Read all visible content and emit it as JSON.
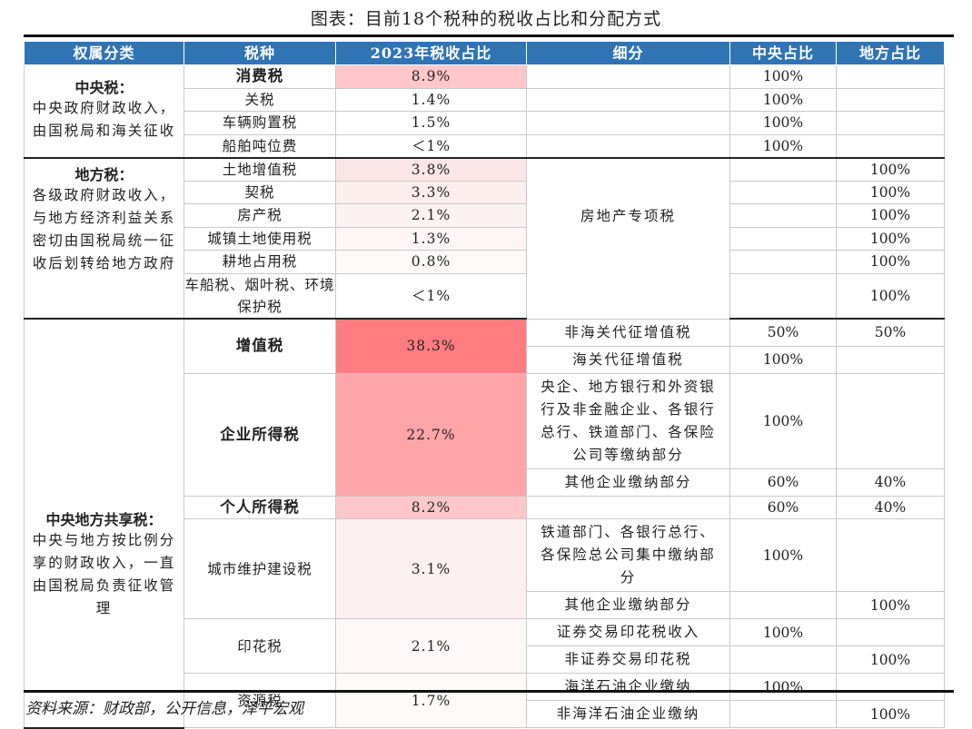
{
  "title": "图表：目前18个税种的税收占比和分配方式",
  "headers": [
    "权属分类",
    "税种",
    "2023年税收占比",
    "细分",
    "中央占比",
    "地方占比"
  ],
  "colors": {
    "header_bg": "#2f74b5",
    "highlight_strong": "#ff7c80",
    "highlight_medium": "#ffa5a8",
    "highlight_light": "#ffc7c9",
    "highlight_faint": "#fbe5e6"
  },
  "groups": {
    "central": {
      "title": "中央税：",
      "desc": "中央政府财政收入，由国税局和海关征收",
      "rows": [
        {
          "tax": "消费税",
          "share": "8.9%",
          "detail": "",
          "central": "100%",
          "local": ""
        },
        {
          "tax": "关税",
          "share": "1.4%",
          "detail": "",
          "central": "100%",
          "local": ""
        },
        {
          "tax": "车辆购置税",
          "share": "1.5%",
          "detail": "",
          "central": "100%",
          "local": ""
        },
        {
          "tax": "船舶吨位费",
          "share": "＜1%",
          "detail": "",
          "central": "100%",
          "local": ""
        }
      ]
    },
    "local": {
      "title": "地方税：",
      "desc": "各级政府财政收入，与地方经济利益关系密切由国税局统一征收后划转给地方政府",
      "detail_merged": "房地产专项税",
      "rows": [
        {
          "tax": "土地增值税",
          "share": "3.8%",
          "central": "",
          "local": "100%"
        },
        {
          "tax": "契税",
          "share": "3.3%",
          "central": "",
          "local": "100%"
        },
        {
          "tax": "房产税",
          "share": "2.1%",
          "central": "",
          "local": "100%"
        },
        {
          "tax": "城镇土地使用税",
          "share": "1.3%",
          "central": "",
          "local": "100%"
        },
        {
          "tax": "耕地占用税",
          "share": "0.8%",
          "central": "",
          "local": "100%"
        },
        {
          "tax": "车船税、烟叶税、环境保护税",
          "share": "＜1%",
          "central": "",
          "local": "100%"
        }
      ]
    },
    "shared": {
      "title": "中央地方共享税：",
      "desc": "中央与地方按比例分享的财政收入，一直由国税局负责征收管理",
      "vat": {
        "tax": "增值税",
        "share": "38.3%",
        "subs": [
          {
            "detail": "非海关代征增值税",
            "central": "50%",
            "local": "50%"
          },
          {
            "detail": "海关代征增值税",
            "central": "100%",
            "local": ""
          }
        ]
      },
      "cit": {
        "tax": "企业所得税",
        "share": "22.7%",
        "subs": [
          {
            "detail": "央企、地方银行和外资银行及非金融企业、各银行总行、铁道部门、各保险公司等缴纳部分",
            "central": "100%",
            "local": ""
          },
          {
            "detail": "其他企业缴纳部分",
            "central": "60%",
            "local": "40%"
          }
        ]
      },
      "pit": {
        "tax": "个人所得税",
        "share": "8.2%",
        "detail": "",
        "central": "60%",
        "local": "40%"
      },
      "urban": {
        "tax": "城市维护建设税",
        "share": "3.1%",
        "subs": [
          {
            "detail": "铁道部门、各银行总行、各保险总公司集中缴纳部分",
            "central": "100%",
            "local": ""
          },
          {
            "detail": "其他企业缴纳部分",
            "central": "",
            "local": "100%"
          }
        ]
      },
      "stamp": {
        "tax": "印花税",
        "share": "2.1%",
        "subs": [
          {
            "detail": "证券交易印花税收入",
            "central": "100%",
            "local": ""
          },
          {
            "detail": "非证券交易印花税",
            "central": "",
            "local": "100%"
          }
        ]
      },
      "resource": {
        "tax": "资源税",
        "share": "1.7%",
        "subs": [
          {
            "detail": "海洋石油企业缴纳",
            "central": "100%",
            "local": ""
          },
          {
            "detail": "非海洋石油企业缴纳",
            "central": "",
            "local": "100%"
          }
        ]
      }
    }
  },
  "source": "资料来源：财政部，公开信息，泽平宏观"
}
